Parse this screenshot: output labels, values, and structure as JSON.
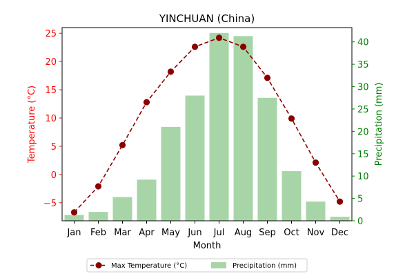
{
  "chart_data": {
    "type": "bar+line",
    "title": "YINCHUAN (China)",
    "xlabel": "Month",
    "categories": [
      "Jan",
      "Feb",
      "Mar",
      "Apr",
      "May",
      "Jun",
      "Jul",
      "Aug",
      "Sep",
      "Oct",
      "Nov",
      "Dec"
    ],
    "left_axis": {
      "label": "Temperature (°C)",
      "ylim": [
        -8.2,
        26.0
      ],
      "ticks": [
        -5,
        0,
        5,
        10,
        15,
        20,
        25
      ],
      "tick_labels": [
        "−5",
        "0",
        "5",
        "10",
        "15",
        "20",
        "25"
      ]
    },
    "right_axis": {
      "label": "Precipitation (mm)",
      "ylim": [
        0,
        43.2
      ],
      "ticks": [
        0,
        5,
        10,
        15,
        20,
        25,
        30,
        35,
        40
      ],
      "tick_labels": [
        "0",
        "5",
        "10",
        "15",
        "20",
        "25",
        "30",
        "35",
        "40"
      ]
    },
    "series": [
      {
        "name": "Max Temperature (°C)",
        "type": "line",
        "axis": "left",
        "style": "dashed with circle markers",
        "values": [
          -6.7,
          -2.1,
          5.2,
          12.8,
          18.2,
          22.6,
          24.2,
          22.6,
          17.1,
          9.9,
          2.1,
          -4.8
        ]
      },
      {
        "name": "Precipitation (mm)",
        "type": "bar",
        "axis": "right",
        "values": [
          1.3,
          2.0,
          5.3,
          9.2,
          21.0,
          28.0,
          42.0,
          41.3,
          27.5,
          11.1,
          4.3,
          0.9
        ]
      }
    ],
    "legend_position": "bottom-center",
    "grid": false,
    "colors": {
      "line": "#8b0000",
      "bar": "#a8d5a8",
      "left_axis": "#ff0000",
      "right_axis": "#008000"
    }
  }
}
